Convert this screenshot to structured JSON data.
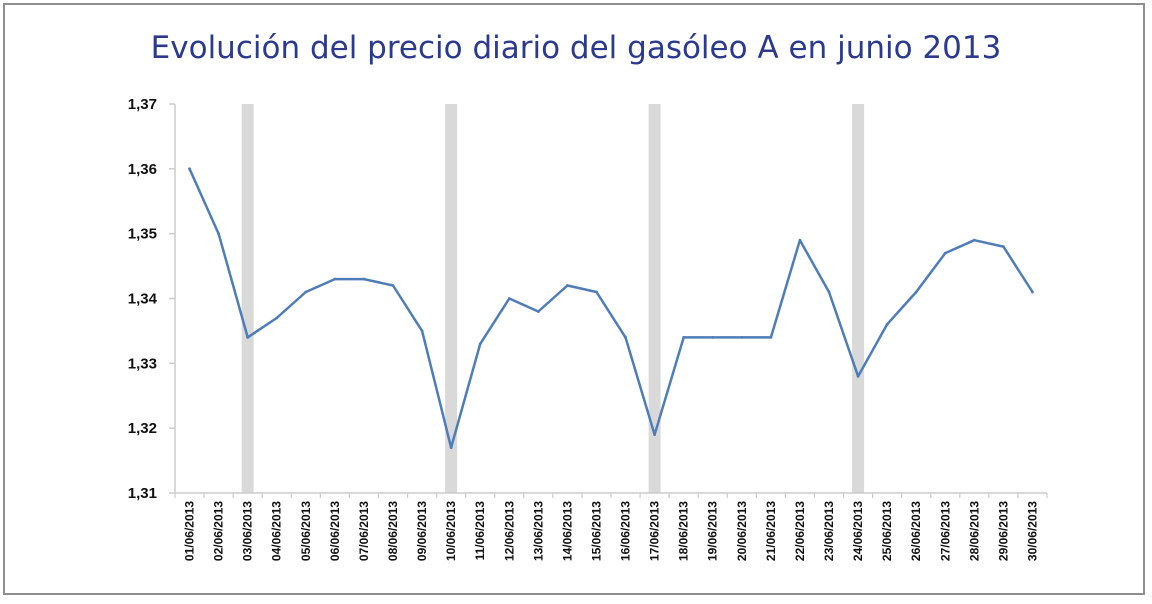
{
  "chart_data": {
    "type": "line",
    "title": "Evolución del precio diario del gasóleo A en junio 2013",
    "xlabel": "",
    "ylabel": "",
    "ylim": [
      1.31,
      1.37
    ],
    "y_ticks": [
      "1,31",
      "1,32",
      "1,33",
      "1,34",
      "1,35",
      "1,36",
      "1,37"
    ],
    "categories": [
      "01/06/2013",
      "02/06/2013",
      "03/06/2013",
      "04/06/2013",
      "05/06/2013",
      "06/06/2013",
      "07/06/2013",
      "08/06/2013",
      "09/06/2013",
      "10/06/2013",
      "11/06/2013",
      "12/06/2013",
      "13/06/2013",
      "14/06/2013",
      "15/06/2013",
      "16/06/2013",
      "17/06/2013",
      "18/06/2013",
      "19/06/2013",
      "20/06/2013",
      "21/06/2013",
      "22/06/2013",
      "23/06/2013",
      "24/06/2013",
      "25/06/2013",
      "26/06/2013",
      "27/06/2013",
      "28/06/2013",
      "29/06/2013",
      "30/06/2013"
    ],
    "series": [
      {
        "values": [
          1.36,
          1.35,
          1.334,
          1.337,
          1.341,
          1.343,
          1.343,
          1.342,
          1.335,
          1.317,
          1.333,
          1.34,
          1.338,
          1.342,
          1.341,
          1.334,
          1.319,
          1.334,
          1.334,
          1.334,
          1.334,
          1.349,
          1.341,
          1.328,
          1.336,
          1.341,
          1.347,
          1.349,
          1.348,
          1.341
        ]
      }
    ],
    "highlighted_categories": [
      "03/06/2013",
      "10/06/2013",
      "17/06/2013",
      "24/06/2013"
    ],
    "grid": false,
    "legend": "none",
    "colors": {
      "line": "#4f7db8",
      "highlight_band": "#d9d9d9",
      "axis": "#cccccc",
      "title": "#2b3a8f"
    }
  }
}
